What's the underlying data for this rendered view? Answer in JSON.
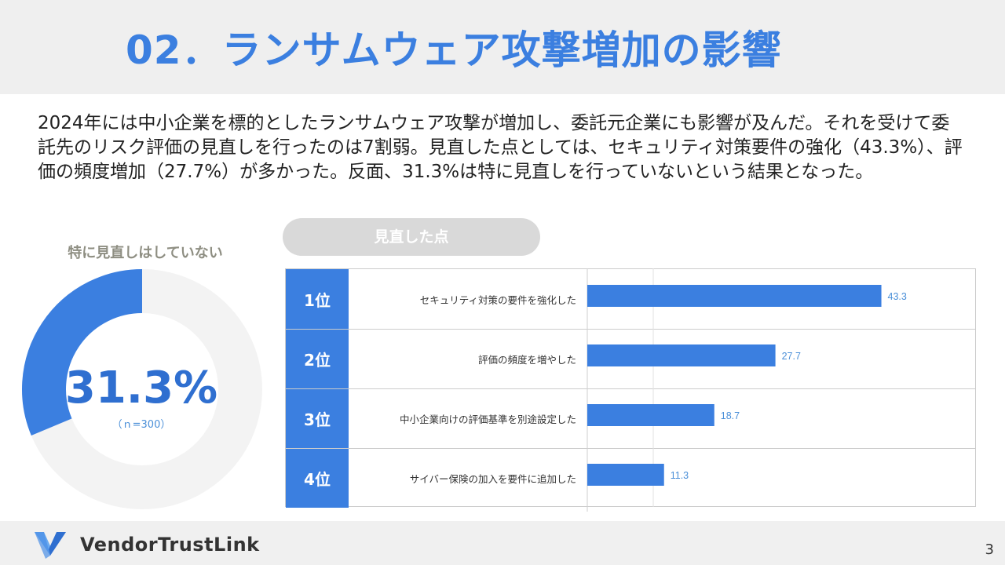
{
  "header": {
    "title": "02．ランサムウェア攻撃増加の影響"
  },
  "summary": "2024年には中小企業を標的としたランサムウェア攻撃が増加し、委託元企業にも影響が及んだ。それを受けて委託先のリスク評価の見直しを行ったのは7割弱。見直した点としては、セキュリティ対策要件の強化（43.3%）、評価の頻度増加（27.7%）が多かった。反面、31.3%は特に見直しを行っていないという結果となった。",
  "donut": {
    "title": "特に見直しはしていない",
    "value_label": "31.3%",
    "n_label": "（ｎ=300）"
  },
  "bar_panel": {
    "pill_label": "見直した点"
  },
  "colors": {
    "accent": "#3b7fe0",
    "donut_rest": "#f3f3f3",
    "header_bg": "#efefef",
    "value_label": "#4a8fd8"
  },
  "chart_data": [
    {
      "type": "pie",
      "title": "特に見直しはしていない",
      "values": [
        31.3,
        68.7
      ],
      "unit": "%",
      "n": 300
    },
    {
      "type": "bar",
      "orientation": "horizontal",
      "title": "見直した点",
      "ranks": [
        "1位",
        "2位",
        "3位",
        "4位"
      ],
      "categories": [
        "セキュリティ対策の要件を強化した",
        "評価の頻度を増やした",
        "中小企業向けの評価基準を別途設定した",
        "サイバー保険の加入を要件に追加した"
      ],
      "values": [
        43.3,
        27.7,
        18.7,
        11.3
      ],
      "value_labels": [
        "43.3",
        "27.7",
        "18.7",
        "11.3"
      ],
      "xlim": [
        0,
        50
      ]
    }
  ],
  "footer": {
    "brand": "VendorTrustLink",
    "page_number": "3",
    "logo_icon": "v-logo-icon"
  }
}
